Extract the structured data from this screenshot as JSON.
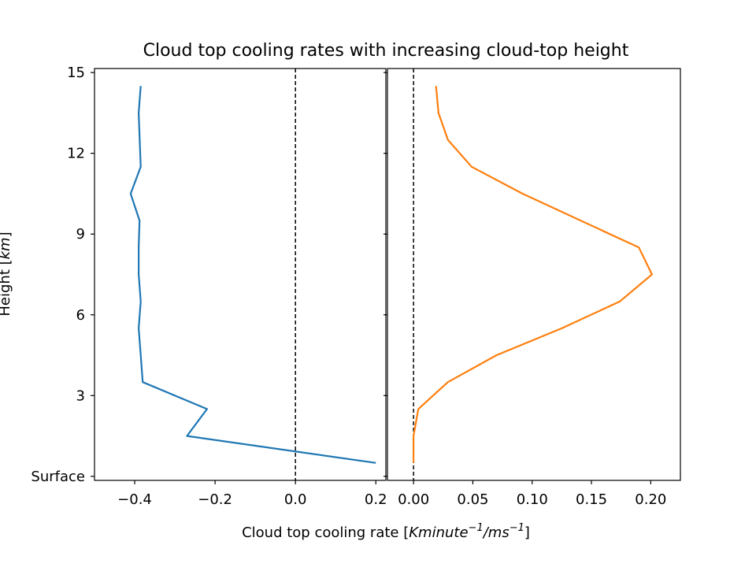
{
  "figure": {
    "title": "Cloud top cooling rates with increasing cloud-top height",
    "ylabel_prefix": "Height [",
    "ylabel_unit": "km",
    "ylabel_suffix": "]",
    "xlabel_prefix": "Cloud top cooling rate [",
    "xlabel_unit": "Kminute",
    "xlabel_exp1": "−1",
    "xlabel_mid": "/ms",
    "xlabel_exp2": "−1",
    "xlabel_suffix": "]"
  },
  "chart_data": [
    {
      "type": "line",
      "panel": "left",
      "color": "#1f77b4",
      "xlim": [
        -0.5,
        0.225
      ],
      "ylim": [
        -0.15,
        15.15
      ],
      "y_ticks": [
        {
          "value": 0,
          "label": "Surface"
        },
        {
          "value": 3,
          "label": "3"
        },
        {
          "value": 6,
          "label": "6"
        },
        {
          "value": 9,
          "label": "9"
        },
        {
          "value": 12,
          "label": "12"
        },
        {
          "value": 15,
          "label": "15"
        }
      ],
      "x_ticks": [
        {
          "value": -0.4,
          "label": "−0.4"
        },
        {
          "value": -0.2,
          "label": "−0.2"
        },
        {
          "value": 0.0,
          "label": "0.0"
        },
        {
          "value": 0.2,
          "label": "0.2"
        }
      ],
      "reference_line_x": 0,
      "series": [
        {
          "x": [
            0.2,
            -0.27,
            -0.22,
            -0.38,
            -0.385,
            -0.39,
            -0.385,
            -0.39,
            -0.39,
            -0.388,
            -0.41,
            -0.385,
            -0.39,
            -0.385
          ],
          "y": [
            0.5,
            1.5,
            2.5,
            3.5,
            4.5,
            5.5,
            6.5,
            7.5,
            8.5,
            9.5,
            10.5,
            11.5,
            13.5,
            14.5
          ]
        }
      ]
    },
    {
      "type": "line",
      "panel": "right",
      "color": "#ff7f0e",
      "xlim": [
        -0.022,
        0.225
      ],
      "ylim": [
        -0.15,
        15.15
      ],
      "x_ticks": [
        {
          "value": 0.0,
          "label": "0.00"
        },
        {
          "value": 0.05,
          "label": "0.05"
        },
        {
          "value": 0.1,
          "label": "0.10"
        },
        {
          "value": 0.15,
          "label": "0.15"
        },
        {
          "value": 0.2,
          "label": "0.20"
        }
      ],
      "reference_line_x": 0,
      "series": [
        {
          "x": [
            0.0,
            0.0,
            0.004,
            0.029,
            0.07,
            0.125,
            0.174,
            0.201,
            0.19,
            0.092,
            0.049,
            0.029,
            0.021,
            0.019
          ],
          "y": [
            0.5,
            1.5,
            2.5,
            3.5,
            4.5,
            5.5,
            6.5,
            7.5,
            8.5,
            10.5,
            11.5,
            12.5,
            13.5,
            14.5
          ]
        }
      ]
    }
  ]
}
